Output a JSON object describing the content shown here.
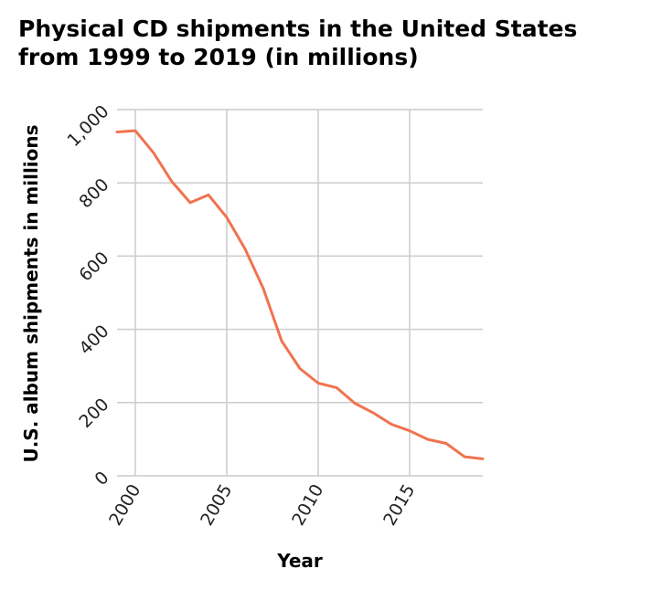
{
  "chart_data": {
    "type": "line",
    "title_lines": [
      "Physical CD shipments in the United States",
      "from 1999 to 2019 (in millions)"
    ],
    "xlabel": "Year",
    "ylabel": "U.S. album shipments in millions",
    "x": [
      1999,
      2000,
      2001,
      2002,
      2003,
      2004,
      2005,
      2006,
      2007,
      2008,
      2009,
      2010,
      2011,
      2012,
      2013,
      2014,
      2015,
      2016,
      2017,
      2018,
      2019
    ],
    "series": [
      {
        "values": [
          938.9,
          942.5,
          881.9,
          803.3,
          746,
          767,
          705.4,
          619.7,
          511.1,
          368.4,
          292.9,
          253,
          240.8,
          198.2,
          172.2,
          141,
          122.9,
          99.4,
          88.6,
          52,
          46.5
        ]
      }
    ],
    "xlim": [
      1999,
      2019
    ],
    "ylim": [
      0,
      1000
    ],
    "xticks": [
      2000,
      2005,
      2010,
      2015
    ],
    "xtick_labels": [
      "2000",
      "2005",
      "2010",
      "2015"
    ],
    "yticks": [
      0,
      200,
      400,
      600,
      800,
      1000
    ],
    "ytick_labels": [
      "0",
      "200",
      "400",
      "600",
      "800",
      "1,000"
    ],
    "grid": true,
    "line_color": "#f07350"
  }
}
